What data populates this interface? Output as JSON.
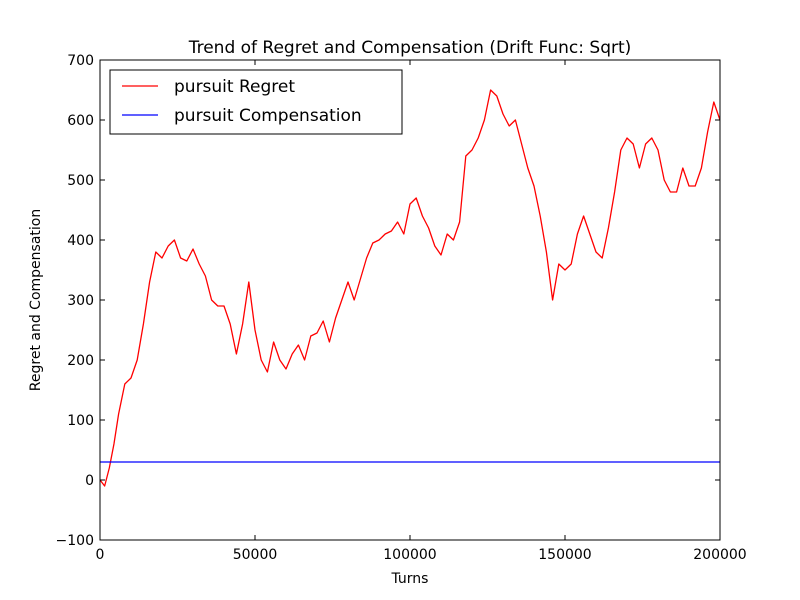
{
  "chart_data": {
    "type": "line",
    "title": "Trend of Regret and Compensation (Drift Func: Sqrt)",
    "xlabel": "Turns",
    "ylabel": "Regret and Compensation",
    "xlim": [
      0,
      200000
    ],
    "ylim": [
      -100,
      700
    ],
    "xticks": [
      0,
      50000,
      100000,
      150000,
      200000
    ],
    "xtick_labels": [
      "0",
      "50000",
      "100000",
      "150000",
      "200000"
    ],
    "yticks": [
      -100,
      0,
      100,
      200,
      300,
      400,
      500,
      600,
      700
    ],
    "ytick_labels": [
      "−100",
      "0",
      "100",
      "200",
      "300",
      "400",
      "500",
      "600",
      "700"
    ],
    "grid": false,
    "legend": "upper left",
    "series": [
      {
        "name": "pursuit Regret",
        "color": "#ff0000",
        "x": [
          0,
          1500,
          3000,
          4500,
          6000,
          8000,
          10000,
          12000,
          14000,
          16000,
          18000,
          20000,
          22000,
          24000,
          26000,
          28000,
          30000,
          32000,
          34000,
          36000,
          38000,
          40000,
          42000,
          44000,
          46000,
          48000,
          50000,
          52000,
          54000,
          56000,
          58000,
          60000,
          62000,
          64000,
          66000,
          68000,
          70000,
          72000,
          74000,
          76000,
          78000,
          80000,
          82000,
          84000,
          86000,
          88000,
          90000,
          92000,
          94000,
          96000,
          98000,
          100000,
          102000,
          104000,
          106000,
          108000,
          110000,
          112000,
          114000,
          116000,
          118000,
          120000,
          122000,
          124000,
          126000,
          128000,
          130000,
          132000,
          134000,
          136000,
          138000,
          140000,
          142000,
          144000,
          146000,
          148000,
          150000,
          152000,
          154000,
          156000,
          158000,
          160000,
          162000,
          164000,
          166000,
          168000,
          170000,
          172000,
          174000,
          176000,
          178000,
          180000,
          182000,
          184000,
          186000,
          188000,
          190000,
          192000,
          194000,
          196000,
          198000,
          200000
        ],
        "values": [
          0,
          -10,
          20,
          60,
          110,
          160,
          170,
          200,
          260,
          330,
          380,
          370,
          390,
          400,
          370,
          365,
          385,
          360,
          340,
          300,
          290,
          290,
          260,
          210,
          260,
          330,
          250,
          200,
          180,
          230,
          200,
          185,
          210,
          225,
          200,
          240,
          245,
          265,
          230,
          270,
          300,
          330,
          300,
          335,
          370,
          395,
          400,
          410,
          415,
          430,
          410,
          460,
          470,
          440,
          420,
          390,
          375,
          410,
          400,
          430,
          540,
          550,
          570,
          600,
          650,
          640,
          610,
          590,
          600,
          560,
          520,
          490,
          440,
          380,
          300,
          360,
          350,
          360,
          410,
          440,
          410,
          380,
          370,
          420,
          480,
          550,
          570,
          560,
          520,
          560,
          570,
          550,
          500,
          480,
          480,
          520,
          490,
          490,
          520,
          580,
          630,
          600
        ]
      },
      {
        "name": "pursuit Compensation",
        "color": "#0000ff",
        "x": [
          0,
          200000
        ],
        "values": [
          30,
          30
        ]
      }
    ]
  }
}
